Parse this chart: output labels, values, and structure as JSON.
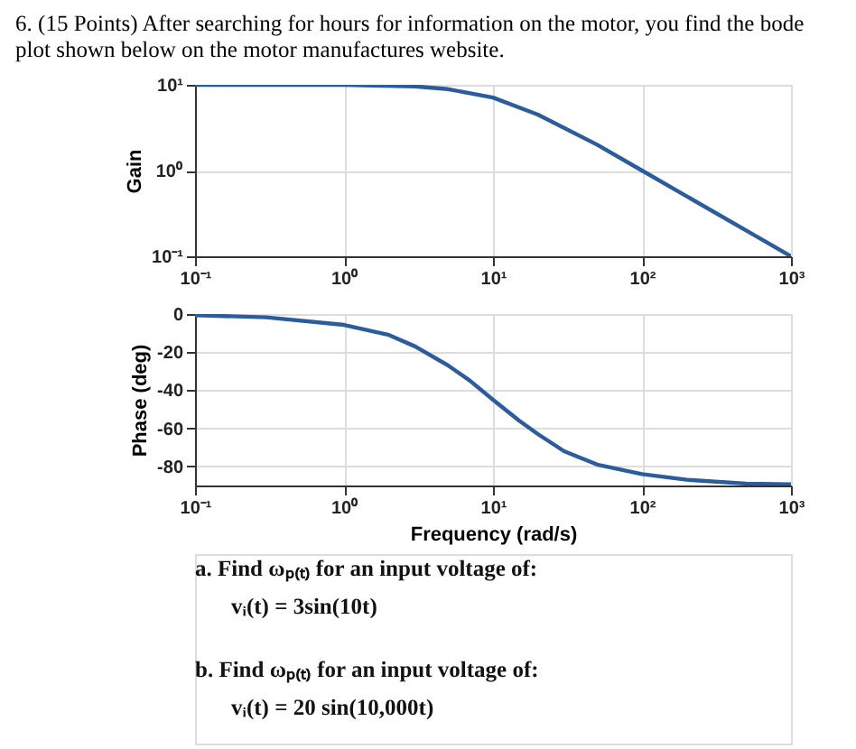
{
  "chart_data": [
    {
      "type": "line",
      "title": "6. (15 Points) After searching for hours for information on the motor, you find the bode plot shown below on the motor manufactures website.",
      "ylabel": "Gain",
      "log": "xy",
      "grid": true,
      "x": [
        0.1,
        1,
        3,
        5,
        10,
        20,
        50,
        100,
        200,
        500,
        1000
      ],
      "series": [
        {
          "color": "#2b5c9e",
          "values": [
            10,
            10,
            9.6,
            8.9,
            7.1,
            4.5,
            2.0,
            1.0,
            0.5,
            0.2,
            0.1
          ]
        }
      ],
      "xlim": [
        0.1,
        1000
      ],
      "xticks": [
        {
          "value": 0.1,
          "label": "10⁻¹"
        },
        {
          "value": 1,
          "label": "10⁰"
        },
        {
          "value": 10,
          "label": "10¹"
        },
        {
          "value": 100,
          "label": "10²"
        },
        {
          "value": 1000,
          "label": "10³"
        }
      ],
      "ylim": [
        0.1,
        10
      ],
      "yticks": [
        {
          "value": 0.1,
          "label": "10⁻¹"
        },
        {
          "value": 1,
          "label": "10⁰"
        },
        {
          "value": 10,
          "label": "10¹"
        }
      ]
    },
    {
      "type": "line",
      "xlabel": "Frequency (rad/s)",
      "ylabel": "Phase (deg)",
      "log": "x",
      "grid": true,
      "x": [
        0.1,
        0.3,
        1,
        2,
        3,
        5,
        7,
        10,
        15,
        20,
        30,
        50,
        100,
        200,
        500,
        1000
      ],
      "series": [
        {
          "color": "#2b5c9e",
          "values": [
            -0.6,
            -1.7,
            -5.7,
            -11,
            -17,
            -27,
            -35,
            -45,
            -56,
            -63,
            -72,
            -79,
            -84,
            -87,
            -89,
            -89.4
          ]
        }
      ],
      "xlim": [
        0.1,
        1000
      ],
      "xticks": [
        {
          "value": 0.1,
          "label": "10⁻¹"
        },
        {
          "value": 1,
          "label": "10⁰"
        },
        {
          "value": 10,
          "label": "10¹"
        },
        {
          "value": 100,
          "label": "10²"
        },
        {
          "value": 1000,
          "label": "10³"
        }
      ],
      "ylim": [
        -90,
        0
      ],
      "yticks": [
        0,
        -20,
        -40,
        -60,
        -80
      ],
      "annotations": [
        "a.  Find ωₚ₍ₜ₎ for an input voltage of:",
        "vᵢ(t) = 3sin(10t)",
        "b.  Find ωₚ₍ₜ₎ for an input voltage of:",
        "vᵢ(t) = 20 sin(10,000t)"
      ]
    }
  ]
}
